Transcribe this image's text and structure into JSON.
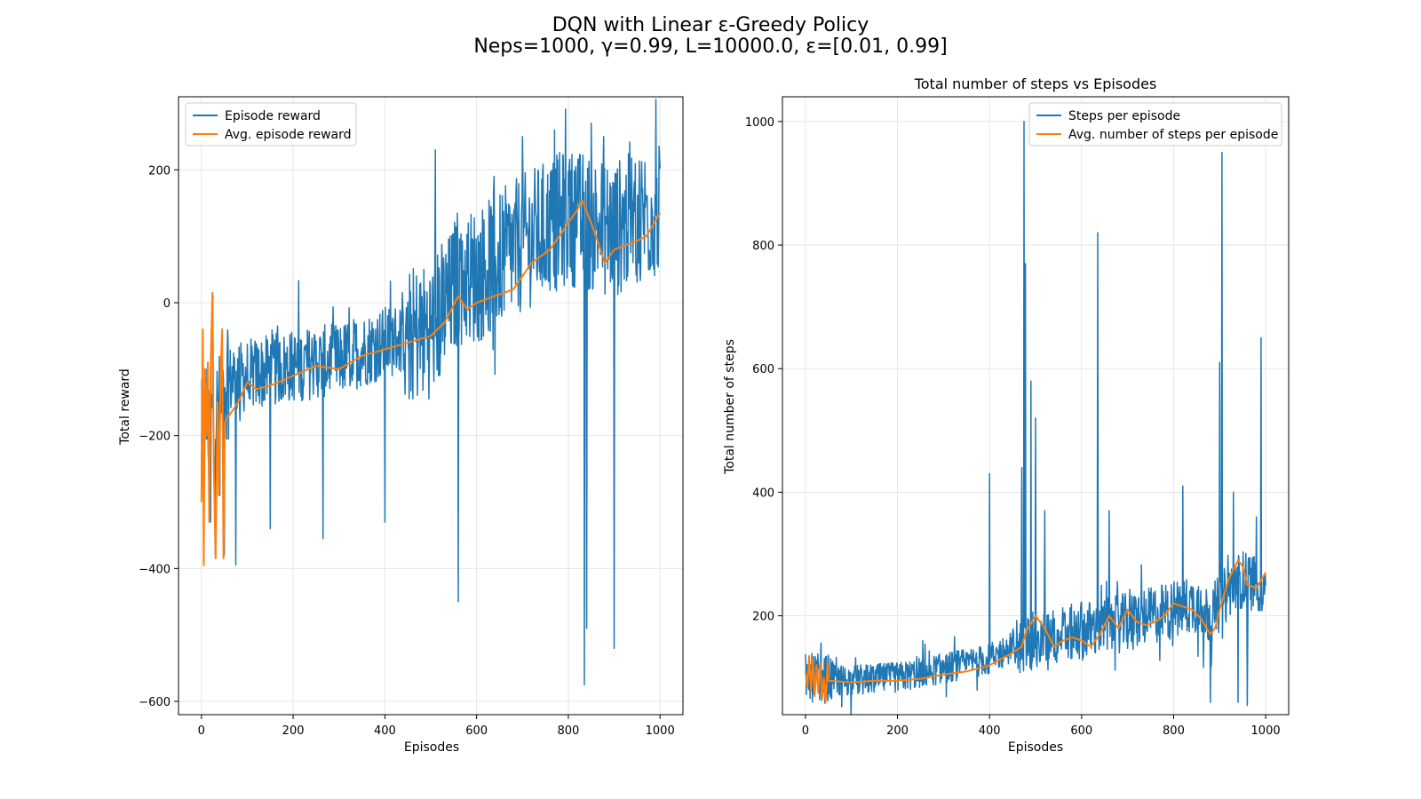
{
  "figure": {
    "title_line1": "DQN with Linear ε-Greedy Policy",
    "title_line2": "Neps=1000, γ=0.99, L=10000.0, ε=[0.01, 0.99]"
  },
  "colors": {
    "series1": "#1f77b4",
    "series2": "#ff7f0e",
    "grid": "#e6e6e6"
  },
  "chart_data": [
    {
      "type": "line",
      "title": "",
      "xlabel": "Episodes",
      "ylabel": "Total reward",
      "xlim": [
        -50,
        1050
      ],
      "ylim": [
        -620,
        310
      ],
      "xticks": [
        0,
        200,
        400,
        600,
        800,
        1000
      ],
      "yticks": [
        -600,
        -400,
        -200,
        0,
        200
      ],
      "grid": true,
      "legend": "top-left",
      "series": [
        {
          "name": "Episode reward",
          "color": "#1f77b4",
          "noise": 55,
          "envelope": [
            [
              0,
              -190
            ],
            [
              40,
              -160
            ],
            [
              50,
              -120
            ],
            [
              100,
              -110
            ],
            [
              200,
              -95
            ],
            [
              300,
              -85
            ],
            [
              400,
              -60
            ],
            [
              500,
              -40
            ],
            [
              540,
              0
            ],
            [
              560,
              40
            ],
            [
              600,
              40
            ],
            [
              700,
              90
            ],
            [
              800,
              130
            ],
            [
              850,
              120
            ],
            [
              900,
              110
            ],
            [
              950,
              130
            ],
            [
              1000,
              140
            ]
          ],
          "spikes": [
            [
              0,
              -300
            ],
            [
              5,
              -390
            ],
            [
              10,
              -100
            ],
            [
              20,
              -330
            ],
            [
              25,
              10
            ],
            [
              30,
              -380
            ],
            [
              40,
              -290
            ],
            [
              50,
              -380
            ],
            [
              75,
              -395
            ],
            [
              150,
              -340
            ],
            [
              265,
              -355
            ],
            [
              400,
              -330
            ],
            [
              560,
              -450
            ],
            [
              835,
              -575
            ],
            [
              840,
              -490
            ],
            [
              900,
              -520
            ],
            [
              510,
              230
            ],
            [
              700,
              250
            ],
            [
              770,
              260
            ],
            [
              850,
              270
            ]
          ]
        },
        {
          "name": "Avg. episode reward",
          "color": "#ff7f0e",
          "noise": 0,
          "points": [
            [
              0,
              -300
            ],
            [
              3,
              -40
            ],
            [
              5,
              -395
            ],
            [
              8,
              -100
            ],
            [
              11,
              -200
            ],
            [
              14,
              -90
            ],
            [
              17,
              -330
            ],
            [
              20,
              -100
            ],
            [
              24,
              15
            ],
            [
              27,
              -250
            ],
            [
              31,
              -385
            ],
            [
              35,
              -150
            ],
            [
              38,
              -290
            ],
            [
              42,
              -100
            ],
            [
              45,
              -40
            ],
            [
              48,
              -385
            ],
            [
              51,
              -180
            ],
            [
              60,
              -170
            ],
            [
              80,
              -150
            ],
            [
              100,
              -120
            ],
            [
              120,
              -130
            ],
            [
              150,
              -125
            ],
            [
              200,
              -110
            ],
            [
              250,
              -95
            ],
            [
              300,
              -100
            ],
            [
              350,
              -80
            ],
            [
              400,
              -70
            ],
            [
              450,
              -60
            ],
            [
              500,
              -50
            ],
            [
              530,
              -30
            ],
            [
              560,
              10
            ],
            [
              580,
              -10
            ],
            [
              600,
              0
            ],
            [
              640,
              10
            ],
            [
              680,
              20
            ],
            [
              720,
              60
            ],
            [
              760,
              80
            ],
            [
              800,
              120
            ],
            [
              820,
              140
            ],
            [
              830,
              155
            ],
            [
              850,
              120
            ],
            [
              870,
              80
            ],
            [
              880,
              60
            ],
            [
              900,
              80
            ],
            [
              940,
              90
            ],
            [
              970,
              100
            ],
            [
              1000,
              135
            ]
          ]
        }
      ]
    },
    {
      "type": "line",
      "title": "Total number of steps vs Episodes",
      "xlabel": "Episodes",
      "ylabel": "Total number of steps",
      "xlim": [
        -50,
        1050
      ],
      "ylim": [
        40,
        1040
      ],
      "xticks": [
        0,
        200,
        400,
        600,
        800,
        1000
      ],
      "yticks": [
        200,
        400,
        600,
        800,
        1000
      ],
      "grid": true,
      "legend": "top-right",
      "series": [
        {
          "name": "Steps per episode",
          "color": "#1f77b4",
          "noise": 25,
          "envelope": [
            [
              0,
              100
            ],
            [
              100,
              95
            ],
            [
              200,
              100
            ],
            [
              300,
              115
            ],
            [
              400,
              130
            ],
            [
              450,
              150
            ],
            [
              500,
              160
            ],
            [
              600,
              175
            ],
            [
              700,
              190
            ],
            [
              800,
              210
            ],
            [
              850,
              220
            ],
            [
              880,
              200
            ],
            [
              900,
              220
            ],
            [
              940,
              260
            ],
            [
              1000,
              250
            ]
          ],
          "spikes": [
            [
              400,
              430
            ],
            [
              470,
              440
            ],
            [
              475,
              1000
            ],
            [
              478,
              770
            ],
            [
              490,
              580
            ],
            [
              500,
              520
            ],
            [
              520,
              370
            ],
            [
              635,
              820
            ],
            [
              660,
              370
            ],
            [
              820,
              410
            ],
            [
              900,
              610
            ],
            [
              905,
              950
            ],
            [
              930,
              400
            ],
            [
              980,
              360
            ],
            [
              990,
              650
            ],
            [
              880,
              60
            ],
            [
              940,
              60
            ],
            [
              960,
              55
            ]
          ]
        },
        {
          "name": "Avg. number of steps per episode",
          "color": "#ff7f0e",
          "noise": 0,
          "points": [
            [
              0,
              110
            ],
            [
              4,
              85
            ],
            [
              8,
              135
            ],
            [
              12,
              80
            ],
            [
              16,
              130
            ],
            [
              20,
              70
            ],
            [
              24,
              120
            ],
            [
              28,
              75
            ],
            [
              32,
              125
            ],
            [
              36,
              65
            ],
            [
              40,
              100
            ],
            [
              44,
              60
            ],
            [
              48,
              125
            ],
            [
              50,
              95
            ],
            [
              100,
              92
            ],
            [
              150,
              95
            ],
            [
              200,
              95
            ],
            [
              250,
              98
            ],
            [
              300,
              105
            ],
            [
              350,
              110
            ],
            [
              400,
              120
            ],
            [
              450,
              140
            ],
            [
              470,
              150
            ],
            [
              480,
              175
            ],
            [
              500,
              200
            ],
            [
              520,
              180
            ],
            [
              540,
              150
            ],
            [
              560,
              160
            ],
            [
              580,
              165
            ],
            [
              600,
              160
            ],
            [
              620,
              150
            ],
            [
              640,
              170
            ],
            [
              660,
              200
            ],
            [
              680,
              180
            ],
            [
              700,
              210
            ],
            [
              720,
              190
            ],
            [
              740,
              185
            ],
            [
              760,
              190
            ],
            [
              780,
              200
            ],
            [
              800,
              220
            ],
            [
              840,
              210
            ],
            [
              860,
              195
            ],
            [
              880,
              170
            ],
            [
              890,
              180
            ],
            [
              900,
              210
            ],
            [
              920,
              260
            ],
            [
              940,
              290
            ],
            [
              950,
              280
            ],
            [
              960,
              250
            ],
            [
              980,
              245
            ],
            [
              1000,
              270
            ]
          ]
        }
      ]
    }
  ]
}
